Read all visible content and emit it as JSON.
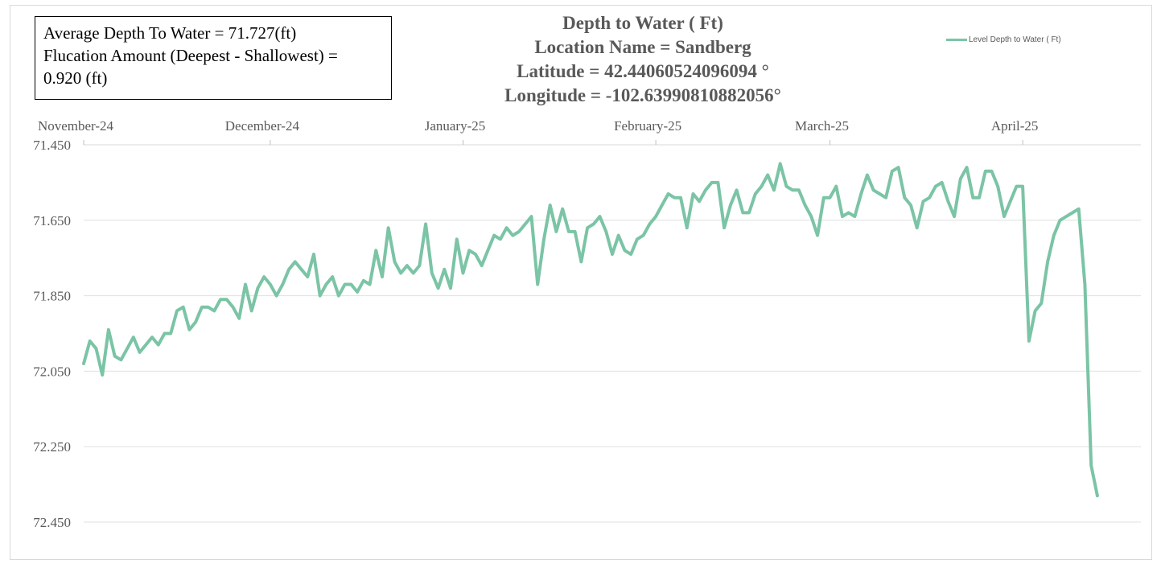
{
  "info_box": {
    "line1": "Average Depth To Water = 71.727(ft)",
    "line2": "Flucation Amount (Deepest - Shallowest) =",
    "line3": "0.920 (ft)"
  },
  "title": {
    "line1": "Depth to Water ( Ft)",
    "line2": "Location Name = Sandberg",
    "line3": "Latitude = 42.44060524096094 °",
    "line4": "Longitude = -102.63990810882056°"
  },
  "colors": {
    "series": "#7bc4a6",
    "grid": "#e0e0e0",
    "axis_text": "#595959",
    "info_text": "#000000"
  },
  "chart_data": {
    "type": "line",
    "title": "Depth to Water ( Ft)",
    "y_inverted": true,
    "ylim": [
      71.45,
      72.45
    ],
    "yticks": [
      "71.450",
      "71.650",
      "71.850",
      "72.050",
      "72.250",
      "72.450"
    ],
    "xlim": [
      "2024-11-01",
      "2025-04-20"
    ],
    "xticks": [
      {
        "label": "November-24",
        "date": "2024-11-01"
      },
      {
        "label": "December-24",
        "date": "2024-12-01"
      },
      {
        "label": "January-25",
        "date": "2025-01-01"
      },
      {
        "label": "February-25",
        "date": "2025-02-01"
      },
      {
        "label": "March-25",
        "date": "2025-03-01"
      },
      {
        "label": "April-25",
        "date": "2025-04-01"
      }
    ],
    "legend_position": "top-right",
    "grid": true,
    "series": [
      {
        "name": "Level Depth to Water ( Ft)",
        "points": [
          [
            "2024-11-01",
            72.03
          ],
          [
            "2024-11-02",
            71.97
          ],
          [
            "2024-11-03",
            71.99
          ],
          [
            "2024-11-04",
            72.06
          ],
          [
            "2024-11-05",
            71.94
          ],
          [
            "2024-11-06",
            72.01
          ],
          [
            "2024-11-07",
            72.02
          ],
          [
            "2024-11-08",
            71.99
          ],
          [
            "2024-11-09",
            71.96
          ],
          [
            "2024-11-10",
            72.0
          ],
          [
            "2024-11-11",
            71.98
          ],
          [
            "2024-11-12",
            71.96
          ],
          [
            "2024-11-13",
            71.98
          ],
          [
            "2024-11-14",
            71.95
          ],
          [
            "2024-11-15",
            71.95
          ],
          [
            "2024-11-16",
            71.89
          ],
          [
            "2024-11-17",
            71.88
          ],
          [
            "2024-11-18",
            71.94
          ],
          [
            "2024-11-19",
            71.92
          ],
          [
            "2024-11-20",
            71.88
          ],
          [
            "2024-11-21",
            71.88
          ],
          [
            "2024-11-22",
            71.89
          ],
          [
            "2024-11-23",
            71.86
          ],
          [
            "2024-11-24",
            71.86
          ],
          [
            "2024-11-25",
            71.88
          ],
          [
            "2024-11-26",
            71.91
          ],
          [
            "2024-11-27",
            71.82
          ],
          [
            "2024-11-28",
            71.89
          ],
          [
            "2024-11-29",
            71.83
          ],
          [
            "2024-11-30",
            71.8
          ],
          [
            "2024-12-01",
            71.82
          ],
          [
            "2024-12-02",
            71.85
          ],
          [
            "2024-12-03",
            71.82
          ],
          [
            "2024-12-04",
            71.78
          ],
          [
            "2024-12-05",
            71.76
          ],
          [
            "2024-12-06",
            71.78
          ],
          [
            "2024-12-07",
            71.8
          ],
          [
            "2024-12-08",
            71.74
          ],
          [
            "2024-12-09",
            71.85
          ],
          [
            "2024-12-10",
            71.82
          ],
          [
            "2024-12-11",
            71.8
          ],
          [
            "2024-12-12",
            71.85
          ],
          [
            "2024-12-13",
            71.82
          ],
          [
            "2024-12-14",
            71.82
          ],
          [
            "2024-12-15",
            71.84
          ],
          [
            "2024-12-16",
            71.81
          ],
          [
            "2024-12-17",
            71.82
          ],
          [
            "2024-12-18",
            71.73
          ],
          [
            "2024-12-19",
            71.8
          ],
          [
            "2024-12-20",
            71.67
          ],
          [
            "2024-12-21",
            71.76
          ],
          [
            "2024-12-22",
            71.79
          ],
          [
            "2024-12-23",
            71.77
          ],
          [
            "2024-12-24",
            71.79
          ],
          [
            "2024-12-25",
            71.77
          ],
          [
            "2024-12-26",
            71.66
          ],
          [
            "2024-12-27",
            71.79
          ],
          [
            "2024-12-28",
            71.83
          ],
          [
            "2024-12-29",
            71.78
          ],
          [
            "2024-12-30",
            71.83
          ],
          [
            "2024-12-31",
            71.7
          ],
          [
            "2025-01-01",
            71.79
          ],
          [
            "2025-01-02",
            71.73
          ],
          [
            "2025-01-03",
            71.74
          ],
          [
            "2025-01-04",
            71.77
          ],
          [
            "2025-01-05",
            71.73
          ],
          [
            "2025-01-06",
            71.69
          ],
          [
            "2025-01-07",
            71.7
          ],
          [
            "2025-01-08",
            71.67
          ],
          [
            "2025-01-09",
            71.69
          ],
          [
            "2025-01-10",
            71.68
          ],
          [
            "2025-01-11",
            71.66
          ],
          [
            "2025-01-12",
            71.64
          ],
          [
            "2025-01-13",
            71.82
          ],
          [
            "2025-01-14",
            71.7
          ],
          [
            "2025-01-15",
            71.61
          ],
          [
            "2025-01-16",
            71.68
          ],
          [
            "2025-01-17",
            71.62
          ],
          [
            "2025-01-18",
            71.68
          ],
          [
            "2025-01-19",
            71.68
          ],
          [
            "2025-01-20",
            71.76
          ],
          [
            "2025-01-21",
            71.67
          ],
          [
            "2025-01-22",
            71.66
          ],
          [
            "2025-01-23",
            71.64
          ],
          [
            "2025-01-24",
            71.68
          ],
          [
            "2025-01-25",
            71.74
          ],
          [
            "2025-01-26",
            71.69
          ],
          [
            "2025-01-27",
            71.73
          ],
          [
            "2025-01-28",
            71.74
          ],
          [
            "2025-01-29",
            71.7
          ],
          [
            "2025-01-30",
            71.69
          ],
          [
            "2025-01-31",
            71.66
          ],
          [
            "2025-02-01",
            71.64
          ],
          [
            "2025-02-02",
            71.61
          ],
          [
            "2025-02-03",
            71.58
          ],
          [
            "2025-02-04",
            71.59
          ],
          [
            "2025-02-05",
            71.59
          ],
          [
            "2025-02-06",
            71.67
          ],
          [
            "2025-02-07",
            71.58
          ],
          [
            "2025-02-08",
            71.6
          ],
          [
            "2025-02-09",
            71.57
          ],
          [
            "2025-02-10",
            71.55
          ],
          [
            "2025-02-11",
            71.55
          ],
          [
            "2025-02-12",
            71.67
          ],
          [
            "2025-02-13",
            71.61
          ],
          [
            "2025-02-14",
            71.57
          ],
          [
            "2025-02-15",
            71.63
          ],
          [
            "2025-02-16",
            71.63
          ],
          [
            "2025-02-17",
            71.58
          ],
          [
            "2025-02-18",
            71.56
          ],
          [
            "2025-02-19",
            71.53
          ],
          [
            "2025-02-20",
            71.57
          ],
          [
            "2025-02-21",
            71.5
          ],
          [
            "2025-02-22",
            71.56
          ],
          [
            "2025-02-23",
            71.57
          ],
          [
            "2025-02-24",
            71.57
          ],
          [
            "2025-02-25",
            71.61
          ],
          [
            "2025-02-26",
            71.64
          ],
          [
            "2025-02-27",
            71.69
          ],
          [
            "2025-02-28",
            71.59
          ],
          [
            "2025-03-01",
            71.59
          ],
          [
            "2025-03-02",
            71.56
          ],
          [
            "2025-03-03",
            71.64
          ],
          [
            "2025-03-04",
            71.63
          ],
          [
            "2025-03-05",
            71.64
          ],
          [
            "2025-03-06",
            71.58
          ],
          [
            "2025-03-07",
            71.53
          ],
          [
            "2025-03-08",
            71.57
          ],
          [
            "2025-03-09",
            71.58
          ],
          [
            "2025-03-10",
            71.59
          ],
          [
            "2025-03-11",
            71.52
          ],
          [
            "2025-03-12",
            71.51
          ],
          [
            "2025-03-13",
            71.59
          ],
          [
            "2025-03-14",
            71.61
          ],
          [
            "2025-03-15",
            71.67
          ],
          [
            "2025-03-16",
            71.6
          ],
          [
            "2025-03-17",
            71.59
          ],
          [
            "2025-03-18",
            71.56
          ],
          [
            "2025-03-19",
            71.55
          ],
          [
            "2025-03-20",
            71.6
          ],
          [
            "2025-03-21",
            71.64
          ],
          [
            "2025-03-22",
            71.54
          ],
          [
            "2025-03-23",
            71.51
          ],
          [
            "2025-03-24",
            71.59
          ],
          [
            "2025-03-25",
            71.59
          ],
          [
            "2025-03-26",
            71.52
          ],
          [
            "2025-03-27",
            71.52
          ],
          [
            "2025-03-28",
            71.56
          ],
          [
            "2025-03-29",
            71.64
          ],
          [
            "2025-03-30",
            71.6
          ],
          [
            "2025-03-31",
            71.56
          ],
          [
            "2025-04-01",
            71.56
          ],
          [
            "2025-04-02",
            71.97
          ],
          [
            "2025-04-03",
            71.89
          ],
          [
            "2025-04-04",
            71.87
          ],
          [
            "2025-04-05",
            71.76
          ],
          [
            "2025-04-06",
            71.69
          ],
          [
            "2025-04-07",
            71.65
          ],
          [
            "2025-04-08",
            71.64
          ],
          [
            "2025-04-09",
            71.63
          ],
          [
            "2025-04-10",
            71.62
          ],
          [
            "2025-04-11",
            71.82
          ],
          [
            "2025-04-12",
            72.3
          ],
          [
            "2025-04-13",
            72.38
          ]
        ]
      }
    ]
  }
}
